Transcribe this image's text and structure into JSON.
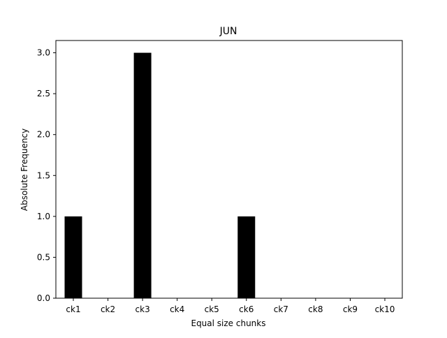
{
  "chart_data": {
    "type": "bar",
    "title": "JUN",
    "xlabel": "Equal size chunks",
    "ylabel": "Absolute Frequency",
    "categories": [
      "ck1",
      "ck2",
      "ck3",
      "ck4",
      "ck5",
      "ck6",
      "ck7",
      "ck8",
      "ck9",
      "ck10"
    ],
    "values": [
      1,
      0,
      3,
      0,
      0,
      1,
      0,
      0,
      0,
      0
    ],
    "ylim": [
      0,
      3.15
    ],
    "yticks": [
      "0.0",
      "0.5",
      "1.0",
      "1.5",
      "2.0",
      "2.5",
      "3.0"
    ],
    "bar_color": "#000000",
    "grid": false
  }
}
